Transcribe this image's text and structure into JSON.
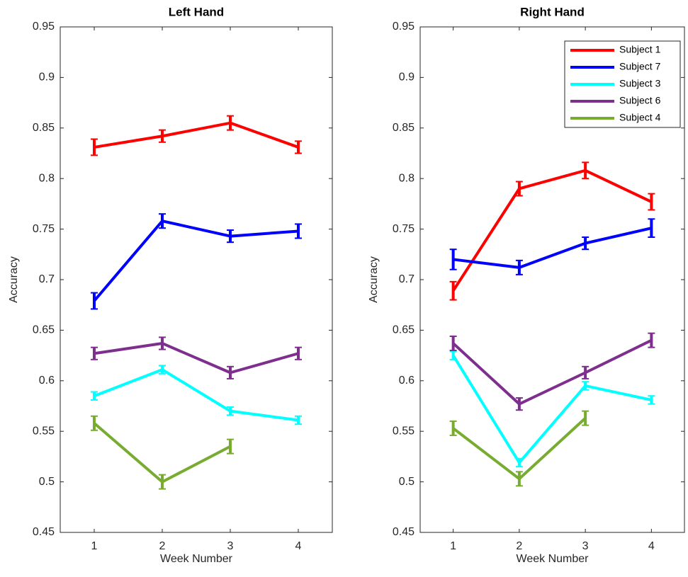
{
  "chart_data": [
    {
      "type": "line",
      "title": "Left Hand",
      "xlabel": "Week Number",
      "ylabel": "Accuracy",
      "x": [
        1,
        2,
        3,
        4
      ],
      "xlim": [
        0.5,
        4.5
      ],
      "xticks": [
        1,
        2,
        3,
        4
      ],
      "ylim": [
        0.45,
        0.95
      ],
      "yticks": [
        0.45,
        0.5,
        0.55,
        0.6,
        0.65,
        0.7,
        0.75,
        0.8,
        0.85,
        0.9,
        0.95
      ],
      "series": [
        {
          "color": "#ff0000",
          "values": [
            0.831,
            0.842,
            0.855,
            0.831
          ],
          "errors": [
            0.008,
            0.006,
            0.007,
            0.006
          ]
        },
        {
          "color": "#0000ff",
          "values": [
            0.679,
            0.758,
            0.743,
            0.748
          ],
          "errors": [
            0.008,
            0.007,
            0.006,
            0.007
          ]
        },
        {
          "color": "#00ffff",
          "values": [
            0.585,
            0.611,
            0.57,
            0.561
          ],
          "errors": [
            0.004,
            0.004,
            0.004,
            0.004
          ]
        },
        {
          "color": "#7e2f8e",
          "values": [
            0.627,
            0.637,
            0.608,
            0.627
          ],
          "errors": [
            0.006,
            0.006,
            0.006,
            0.006
          ]
        },
        {
          "color": "#77ac30",
          "values": [
            0.558,
            0.5,
            0.535,
            null
          ],
          "errors": [
            0.007,
            0.007,
            0.007,
            null
          ]
        }
      ]
    },
    {
      "type": "line",
      "title": "Right Hand",
      "xlabel": "Week Number",
      "ylabel": "Accuracy",
      "x": [
        1,
        2,
        3,
        4
      ],
      "xlim": [
        0.5,
        4.5
      ],
      "xticks": [
        1,
        2,
        3,
        4
      ],
      "ylim": [
        0.45,
        0.95
      ],
      "yticks": [
        0.45,
        0.5,
        0.55,
        0.6,
        0.65,
        0.7,
        0.75,
        0.8,
        0.85,
        0.9,
        0.95
      ],
      "legend": "upper right",
      "series": [
        {
          "name": "Subject 1",
          "color": "#ff0000",
          "values": [
            0.689,
            0.79,
            0.808,
            0.777
          ],
          "errors": [
            0.009,
            0.007,
            0.008,
            0.008
          ]
        },
        {
          "name": "Subject 7",
          "color": "#0000ff",
          "values": [
            0.72,
            0.712,
            0.736,
            0.751
          ],
          "errors": [
            0.01,
            0.007,
            0.006,
            0.009
          ]
        },
        {
          "name": "Subject 3",
          "color": "#00ffff",
          "values": [
            0.625,
            0.519,
            0.595,
            0.581
          ],
          "errors": [
            0.004,
            0.004,
            0.004,
            0.004
          ]
        },
        {
          "name": "Subject 6",
          "color": "#7e2f8e",
          "values": [
            0.637,
            0.577,
            0.608,
            0.64
          ],
          "errors": [
            0.007,
            0.006,
            0.006,
            0.007
          ]
        },
        {
          "name": "Subject 4",
          "color": "#77ac30",
          "values": [
            0.553,
            0.503,
            0.563,
            null
          ],
          "errors": [
            0.007,
            0.007,
            0.007,
            null
          ]
        }
      ]
    }
  ]
}
